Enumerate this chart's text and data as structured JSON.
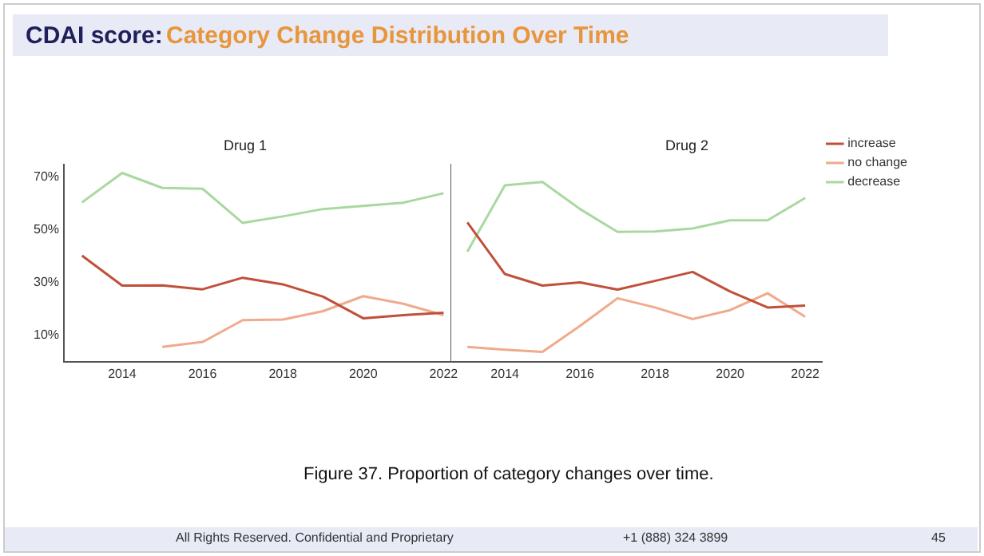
{
  "chart_data": [
    {
      "type": "line",
      "title": "Drug 1",
      "x": [
        2013,
        2014,
        2015,
        2016,
        2017,
        2018,
        2019,
        2020,
        2021,
        2022
      ],
      "xlim": [
        2012.55,
        2022.45
      ],
      "xticks": [
        2014,
        2016,
        2018,
        2020,
        2022
      ],
      "ylim": [
        0,
        75
      ],
      "yticks": [
        {
          "value": 10,
          "label": "10%"
        },
        {
          "value": 30,
          "label": "30%"
        },
        {
          "value": 50,
          "label": "50%"
        },
        {
          "value": 70,
          "label": "70%"
        }
      ],
      "grid": false,
      "legend": false,
      "marker": "none",
      "line_style": "solid",
      "series": [
        {
          "color": "#c0503a",
          "values": [
            40.3,
            28.9,
            29,
            27.5,
            31.9,
            29.4,
            24.7,
            16.5,
            17.7,
            18.6
          ]
        },
        {
          "color": "#f0aa8c",
          "values": [
            null,
            null,
            5.6,
            7.5,
            15.8,
            16,
            19.2,
            24.9,
            22,
            17.7
          ]
        },
        {
          "color": "#a9d8a0",
          "values": [
            60.5,
            71.7,
            66,
            65.7,
            52.7,
            55.2,
            58,
            59.2,
            60.4,
            64
          ]
        }
      ],
      "annotations": [
        "CDAI score:",
        "Category Change Distribution Over Time",
        "Figure 37. Proportion of category changes over time.",
        "All Rights Reserved. Confidential and Proprietary",
        "+1 (888) 324 3899",
        "45"
      ]
    },
    {
      "type": "line",
      "title": "Drug 2",
      "x": [
        2013,
        2014,
        2015,
        2016,
        2017,
        2018,
        2019,
        2020,
        2021,
        2022
      ],
      "xlim": [
        2012.55,
        2022.45
      ],
      "xticks": [
        2014,
        2016,
        2018,
        2020,
        2022
      ],
      "ylim": [
        0,
        75
      ],
      "tick_labels": "x",
      "grid": false,
      "legend": "right",
      "marker": "none",
      "line_style": "solid",
      "series": [
        {
          "name": "increase",
          "color": "#c0503a",
          "values": [
            52.9,
            33.3,
            28.9,
            30.1,
            27.4,
            30.7,
            34.1,
            26.7,
            20.6,
            21.3
          ]
        },
        {
          "name": "no change",
          "color": "#f0aa8c",
          "values": [
            5.6,
            4.6,
            3.7,
            13.6,
            24.1,
            20.6,
            16.2,
            19.6,
            26,
            17.1
          ]
        },
        {
          "name": "decrease",
          "color": "#a9d8a0",
          "values": [
            41.8,
            67,
            68.3,
            58,
            49.3,
            49.5,
            50.6,
            53.7,
            53.7,
            62.2
          ]
        }
      ]
    }
  ]
}
